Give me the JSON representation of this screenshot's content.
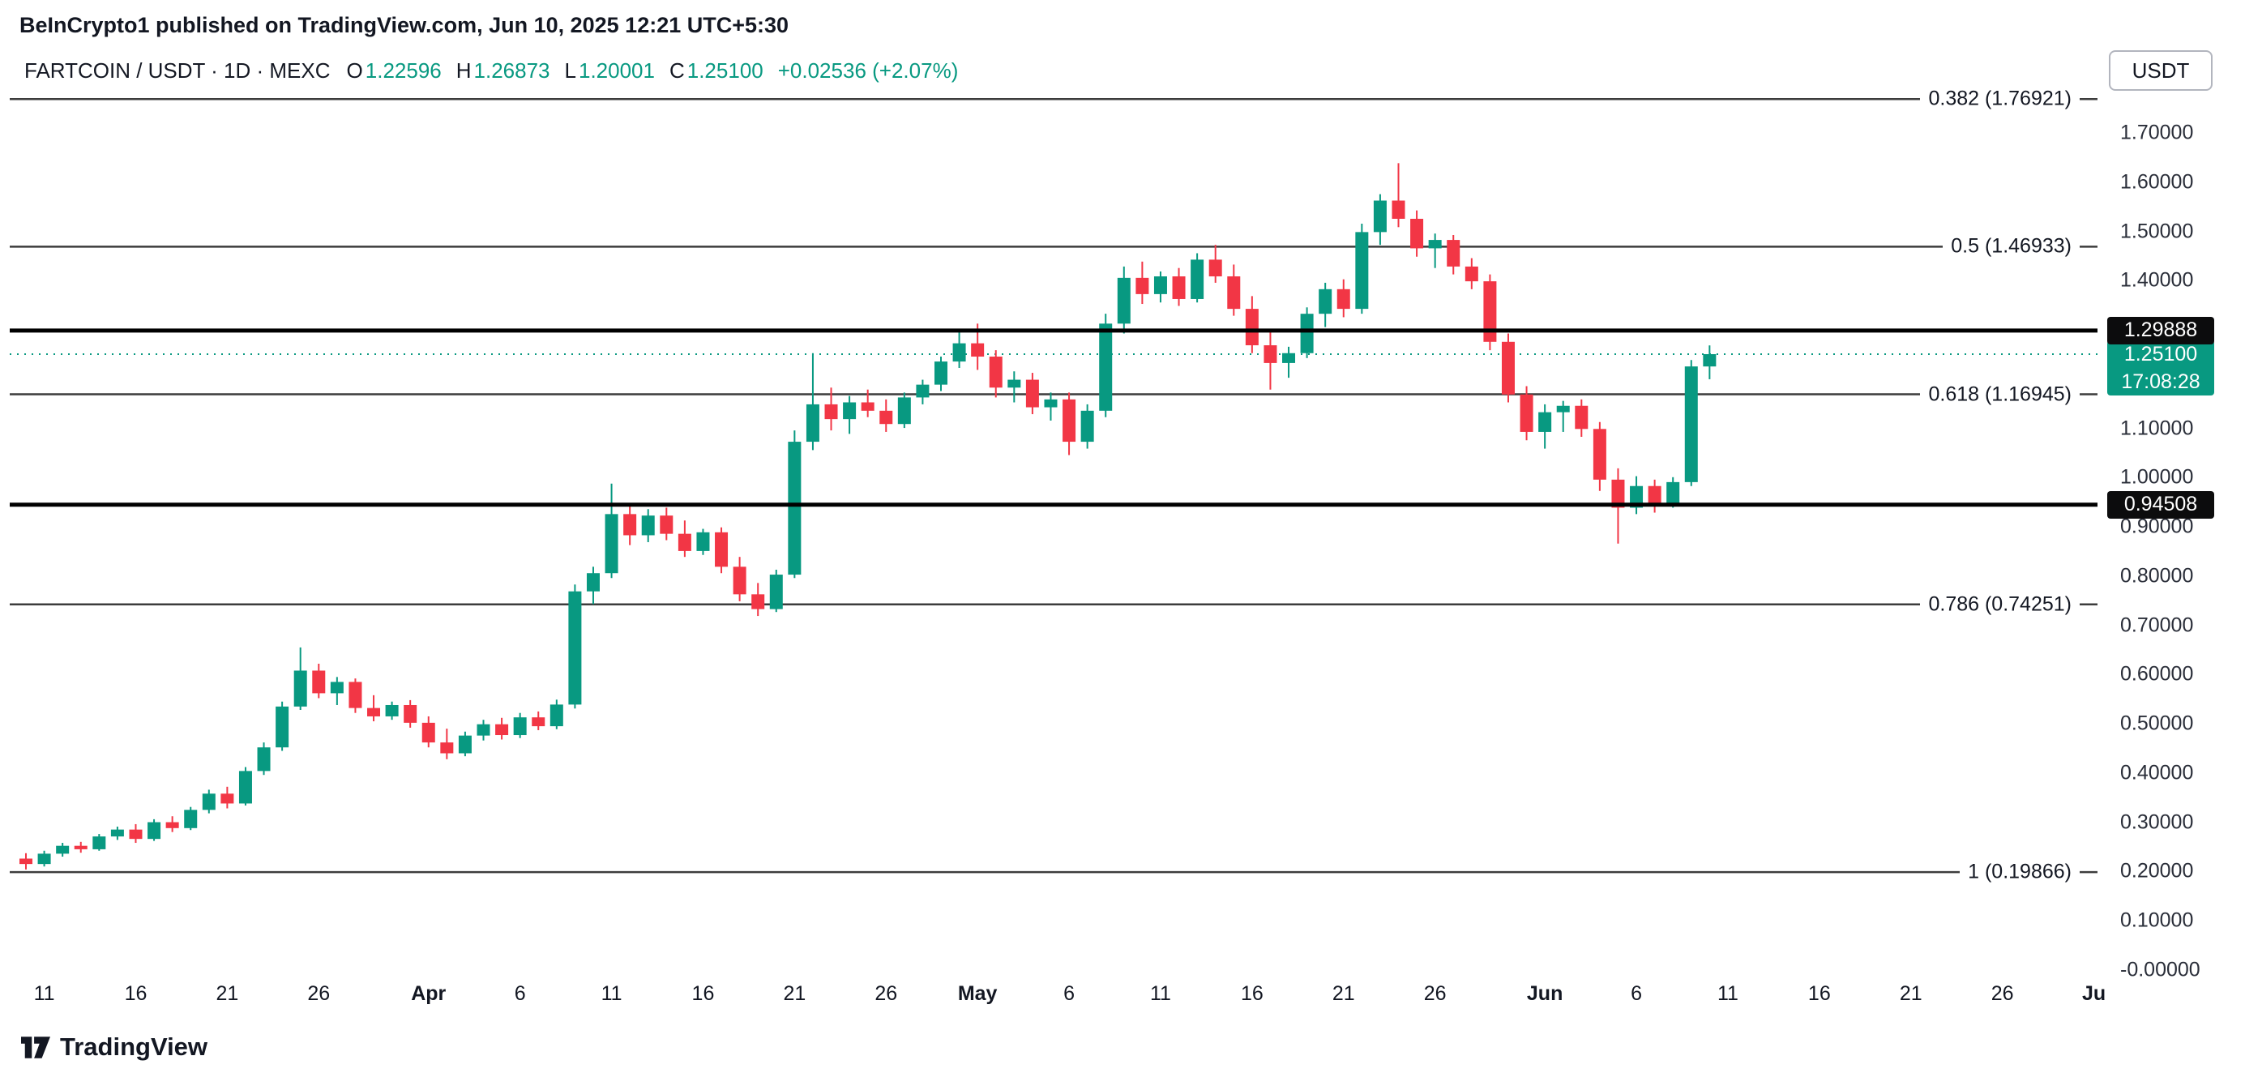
{
  "page": {
    "publish_line": "BeInCrypto1 published on TradingView.com, Jun 10, 2025 12:21 UTC+5:30"
  },
  "toolbar": {
    "currency_label": "USDT"
  },
  "legend": {
    "symbol": "FARTCOIN / USDT · 1D · MEXC",
    "ohlc": {
      "o_label": "O",
      "o": "1.22596",
      "h_label": "H",
      "h": "1.26873",
      "l_label": "L",
      "l": "1.20001",
      "c_label": "C",
      "c": "1.25100"
    },
    "change": "+0.02536 (+2.07%)"
  },
  "watermark": {
    "brand": "TradingView"
  },
  "colors": {
    "up": "#089981",
    "down": "#F23645",
    "text": "#131722",
    "axis_text": "#2A2E39",
    "fib_line": "#3C3C3C",
    "ray_line": "#000000",
    "tag_black": "#0C0C0D",
    "tag_current": "#089981"
  },
  "chart_data": {
    "type": "candlestick",
    "title": "FARTCOIN / USDT · 1D · MEXC",
    "pair": "FARTCOIN/USDT",
    "interval": "1D",
    "exchange": "MEXC",
    "start_date": "2025-03-10",
    "end_date": "2025-06-10",
    "grid": false,
    "y_axis": {
      "min": 0.0,
      "max": 1.7,
      "labels": [
        {
          "text": "1.70000",
          "value": 1.7
        },
        {
          "text": "1.60000",
          "value": 1.6
        },
        {
          "text": "1.50000",
          "value": 1.5
        },
        {
          "text": "1.40000",
          "value": 1.4
        },
        {
          "text": "1.10000",
          "value": 1.1
        },
        {
          "text": "1.00000",
          "value": 1.0
        },
        {
          "text": "0.90000",
          "value": 0.9
        },
        {
          "text": "0.80000",
          "value": 0.8
        },
        {
          "text": "0.70000",
          "value": 0.7
        },
        {
          "text": "0.60000",
          "value": 0.6
        },
        {
          "text": "0.50000",
          "value": 0.5
        },
        {
          "text": "0.40000",
          "value": 0.4
        },
        {
          "text": "0.30000",
          "value": 0.3
        },
        {
          "text": "0.20000",
          "value": 0.2
        },
        {
          "text": "0.10000",
          "value": 0.1
        },
        {
          "text": "-0.00000",
          "value": 0.0
        }
      ]
    },
    "x_axis": {
      "labels": [
        {
          "text": "11",
          "day": 1,
          "bold": false
        },
        {
          "text": "16",
          "day": 6,
          "bold": false
        },
        {
          "text": "21",
          "day": 11,
          "bold": false
        },
        {
          "text": "26",
          "day": 16,
          "bold": false
        },
        {
          "text": "Apr",
          "day": 22,
          "bold": true
        },
        {
          "text": "6",
          "day": 27,
          "bold": false
        },
        {
          "text": "11",
          "day": 32,
          "bold": false
        },
        {
          "text": "16",
          "day": 37,
          "bold": false
        },
        {
          "text": "21",
          "day": 42,
          "bold": false
        },
        {
          "text": "26",
          "day": 47,
          "bold": false
        },
        {
          "text": "May",
          "day": 52,
          "bold": true
        },
        {
          "text": "6",
          "day": 57,
          "bold": false
        },
        {
          "text": "11",
          "day": 62,
          "bold": false
        },
        {
          "text": "16",
          "day": 67,
          "bold": false
        },
        {
          "text": "21",
          "day": 72,
          "bold": false
        },
        {
          "text": "26",
          "day": 77,
          "bold": false
        },
        {
          "text": "Jun",
          "day": 83,
          "bold": true
        },
        {
          "text": "6",
          "day": 88,
          "bold": false
        },
        {
          "text": "11",
          "day": 93,
          "bold": false
        },
        {
          "text": "16",
          "day": 98,
          "bold": false
        },
        {
          "text": "21",
          "day": 103,
          "bold": false
        },
        {
          "text": "26",
          "day": 108,
          "bold": false
        },
        {
          "text": "Ju",
          "day": 113,
          "bold": true
        }
      ]
    },
    "fib_levels": [
      {
        "label": "0.382 (1.76921)",
        "ratio": 0.382,
        "price": 1.76921
      },
      {
        "label": "0.5 (1.46933)",
        "ratio": 0.5,
        "price": 1.46933
      },
      {
        "label": "0.618 (1.16945)",
        "ratio": 0.618,
        "price": 1.16945
      },
      {
        "label": "0.786 (0.74251)",
        "ratio": 0.786,
        "price": 0.74251
      },
      {
        "label": "1 (0.19866)",
        "ratio": 1,
        "price": 0.19866
      }
    ],
    "horizontal_lines": [
      {
        "price": 1.29888,
        "tag": "1.29888"
      },
      {
        "price": 0.94508,
        "tag": "0.94508"
      }
    ],
    "current_price": {
      "value": 1.251,
      "tag": "1.25100",
      "countdown": "17:08:28"
    },
    "candles": [
      [
        0.226,
        0.237,
        0.204,
        0.215
      ],
      [
        0.215,
        0.242,
        0.21,
        0.236
      ],
      [
        0.236,
        0.258,
        0.23,
        0.252
      ],
      [
        0.252,
        0.26,
        0.238,
        0.245
      ],
      [
        0.245,
        0.276,
        0.242,
        0.271
      ],
      [
        0.271,
        0.291,
        0.264,
        0.285
      ],
      [
        0.285,
        0.296,
        0.258,
        0.266
      ],
      [
        0.266,
        0.306,
        0.262,
        0.3
      ],
      [
        0.3,
        0.312,
        0.28,
        0.288
      ],
      [
        0.288,
        0.331,
        0.284,
        0.325
      ],
      [
        0.325,
        0.366,
        0.318,
        0.358
      ],
      [
        0.358,
        0.372,
        0.328,
        0.338
      ],
      [
        0.338,
        0.412,
        0.334,
        0.404
      ],
      [
        0.404,
        0.462,
        0.396,
        0.452
      ],
      [
        0.452,
        0.545,
        0.445,
        0.535
      ],
      [
        0.535,
        0.655,
        0.528,
        0.608
      ],
      [
        0.608,
        0.622,
        0.552,
        0.562
      ],
      [
        0.562,
        0.595,
        0.538,
        0.585
      ],
      [
        0.585,
        0.592,
        0.522,
        0.532
      ],
      [
        0.532,
        0.558,
        0.505,
        0.515
      ],
      [
        0.515,
        0.545,
        0.508,
        0.538
      ],
      [
        0.538,
        0.548,
        0.492,
        0.502
      ],
      [
        0.502,
        0.515,
        0.452,
        0.462
      ],
      [
        0.462,
        0.49,
        0.428,
        0.44
      ],
      [
        0.44,
        0.484,
        0.434,
        0.476
      ],
      [
        0.476,
        0.508,
        0.466,
        0.499
      ],
      [
        0.499,
        0.512,
        0.468,
        0.477
      ],
      [
        0.477,
        0.522,
        0.471,
        0.513
      ],
      [
        0.513,
        0.525,
        0.487,
        0.495
      ],
      [
        0.495,
        0.549,
        0.489,
        0.539
      ],
      [
        0.539,
        0.783,
        0.531,
        0.769
      ],
      [
        0.769,
        0.819,
        0.743,
        0.806
      ],
      [
        0.806,
        0.988,
        0.796,
        0.926
      ],
      [
        0.926,
        0.946,
        0.863,
        0.883
      ],
      [
        0.883,
        0.936,
        0.869,
        0.923
      ],
      [
        0.923,
        0.939,
        0.873,
        0.886
      ],
      [
        0.886,
        0.913,
        0.839,
        0.851
      ],
      [
        0.851,
        0.896,
        0.843,
        0.889
      ],
      [
        0.889,
        0.899,
        0.806,
        0.819
      ],
      [
        0.819,
        0.839,
        0.749,
        0.763
      ],
      [
        0.763,
        0.786,
        0.719,
        0.733
      ],
      [
        0.733,
        0.813,
        0.727,
        0.803
      ],
      [
        0.803,
        1.096,
        0.796,
        1.073
      ],
      [
        1.073,
        1.253,
        1.056,
        1.149
      ],
      [
        1.149,
        1.183,
        1.096,
        1.119
      ],
      [
        1.119,
        1.166,
        1.089,
        1.153
      ],
      [
        1.153,
        1.179,
        1.123,
        1.136
      ],
      [
        1.136,
        1.159,
        1.093,
        1.109
      ],
      [
        1.109,
        1.173,
        1.101,
        1.163
      ],
      [
        1.163,
        1.199,
        1.149,
        1.189
      ],
      [
        1.189,
        1.246,
        1.176,
        1.236
      ],
      [
        1.236,
        1.296,
        1.223,
        1.273
      ],
      [
        1.273,
        1.313,
        1.219,
        1.246
      ],
      [
        1.246,
        1.259,
        1.163,
        1.183
      ],
      [
        1.183,
        1.216,
        1.153,
        1.199
      ],
      [
        1.199,
        1.213,
        1.129,
        1.143
      ],
      [
        1.143,
        1.173,
        1.116,
        1.159
      ],
      [
        1.159,
        1.173,
        1.046,
        1.073
      ],
      [
        1.073,
        1.149,
        1.059,
        1.136
      ],
      [
        1.136,
        1.333,
        1.123,
        1.313
      ],
      [
        1.313,
        1.429,
        1.293,
        1.406
      ],
      [
        1.406,
        1.439,
        1.353,
        1.373
      ],
      [
        1.373,
        1.419,
        1.356,
        1.409
      ],
      [
        1.409,
        1.426,
        1.349,
        1.363
      ],
      [
        1.363,
        1.456,
        1.356,
        1.443
      ],
      [
        1.443,
        1.473,
        1.396,
        1.409
      ],
      [
        1.409,
        1.433,
        1.329,
        1.343
      ],
      [
        1.343,
        1.369,
        1.253,
        1.269
      ],
      [
        1.269,
        1.296,
        1.179,
        1.233
      ],
      [
        1.233,
        1.266,
        1.203,
        1.253
      ],
      [
        1.253,
        1.346,
        1.243,
        1.333
      ],
      [
        1.333,
        1.396,
        1.306,
        1.383
      ],
      [
        1.383,
        1.403,
        1.326,
        1.343
      ],
      [
        1.343,
        1.516,
        1.333,
        1.499
      ],
      [
        1.499,
        1.576,
        1.473,
        1.563
      ],
      [
        1.563,
        1.639,
        1.509,
        1.526
      ],
      [
        1.526,
        1.543,
        1.449,
        1.466
      ],
      [
        1.466,
        1.496,
        1.426,
        1.483
      ],
      [
        1.483,
        1.493,
        1.413,
        1.429
      ],
      [
        1.429,
        1.446,
        1.383,
        1.399
      ],
      [
        1.399,
        1.413,
        1.259,
        1.276
      ],
      [
        1.276,
        1.293,
        1.153,
        1.169
      ],
      [
        1.169,
        1.186,
        1.076,
        1.093
      ],
      [
        1.093,
        1.149,
        1.059,
        1.133
      ],
      [
        1.133,
        1.156,
        1.093,
        1.146
      ],
      [
        1.146,
        1.159,
        1.083,
        1.099
      ],
      [
        1.099,
        1.113,
        0.973,
        0.996
      ],
      [
        0.996,
        1.019,
        0.866,
        0.939
      ],
      [
        0.939,
        1.003,
        0.926,
        0.983
      ],
      [
        0.983,
        0.996,
        0.929,
        0.946
      ],
      [
        0.946,
        1.001,
        0.939,
        0.991
      ],
      [
        0.991,
        1.239,
        0.983,
        1.226
      ],
      [
        1.22596,
        1.26873,
        1.20001,
        1.251
      ]
    ]
  }
}
